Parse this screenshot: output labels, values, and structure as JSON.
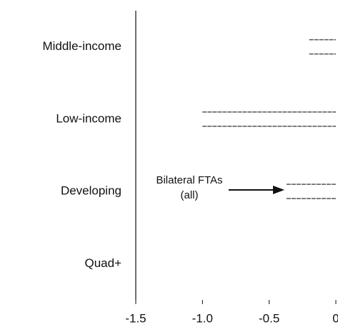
{
  "chart_data": {
    "type": "bar",
    "categories": [
      "Middle-income",
      "Low-income",
      "Developing",
      "Quad+"
    ],
    "series": [
      {
        "color": "#555555",
        "values": [
          -0.2,
          -1.0,
          -0.37,
          0
        ]
      },
      {
        "color": "#555555",
        "values": [
          -0.2,
          -1.0,
          -0.37,
          0
        ]
      }
    ],
    "xlim": [
      -1.5,
      0
    ],
    "xticks": [
      -1.5,
      {
        "value": -1,
        "label": "-1.0"
      },
      -0.5,
      0
    ],
    "annotation": [
      "Bilateral FTAs",
      "(all)"
    ]
  }
}
